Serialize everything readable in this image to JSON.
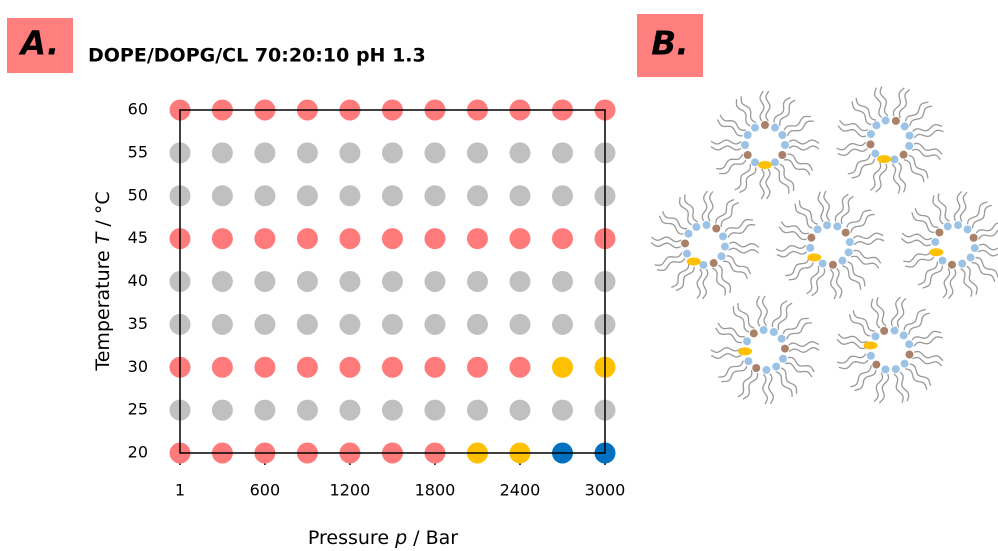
{
  "panel_labels": [
    "A.",
    "B."
  ],
  "chart_data": {
    "type": "scatter",
    "title": "DOPE/DOPG/CL 70:20:10 pH 1.3",
    "xlabel_parts": [
      "Pressure",
      "p",
      "/ Bar"
    ],
    "ylabel_parts": [
      "Temperature",
      "T",
      "/ °C"
    ],
    "xlim": [
      1,
      3000
    ],
    "ylim": [
      20,
      60
    ],
    "xticks": [
      1,
      600,
      1200,
      1800,
      2400,
      3000
    ],
    "yticks": [
      20,
      25,
      30,
      35,
      40,
      45,
      50,
      55,
      60
    ],
    "series": [
      {
        "color": "#ff7b7b",
        "x": [
          1,
          300,
          600,
          900,
          1200,
          1500,
          1800,
          2100,
          2400,
          2700,
          3000,
          1,
          300,
          600,
          900,
          1200,
          1500,
          1800,
          2100,
          2400,
          2700,
          3000,
          1,
          300,
          600,
          900,
          1200,
          1500,
          1800,
          2100,
          2400,
          1,
          300,
          600,
          900,
          1200,
          1500,
          1800
        ],
        "values": [
          60,
          60,
          60,
          60,
          60,
          60,
          60,
          60,
          60,
          60,
          60,
          45,
          45,
          45,
          45,
          45,
          45,
          45,
          45,
          45,
          45,
          45,
          30,
          30,
          30,
          30,
          30,
          30,
          30,
          30,
          30,
          20,
          20,
          20,
          20,
          20,
          20,
          20
        ]
      },
      {
        "color": "#c0c0c0",
        "x": [
          1,
          300,
          600,
          900,
          1200,
          1500,
          1800,
          2100,
          2400,
          2700,
          3000,
          1,
          300,
          600,
          900,
          1200,
          1500,
          1800,
          2100,
          2400,
          2700,
          3000,
          1,
          300,
          600,
          900,
          1200,
          1500,
          1800,
          2100,
          2400,
          2700,
          3000,
          1,
          300,
          600,
          900,
          1200,
          1500,
          1800,
          2100,
          2400,
          2700,
          3000,
          1,
          300,
          600,
          900,
          1200,
          1500,
          1800,
          2100,
          2400,
          2700,
          3000
        ],
        "values": [
          55,
          55,
          55,
          55,
          55,
          55,
          55,
          55,
          55,
          55,
          55,
          50,
          50,
          50,
          50,
          50,
          50,
          50,
          50,
          50,
          50,
          50,
          40,
          40,
          40,
          40,
          40,
          40,
          40,
          40,
          40,
          40,
          40,
          35,
          35,
          35,
          35,
          35,
          35,
          35,
          35,
          35,
          35,
          35,
          25,
          25,
          25,
          25,
          25,
          25,
          25,
          25,
          25,
          25,
          25
        ]
      },
      {
        "color": "#ffc000",
        "x": [
          2700,
          3000,
          2100,
          2400
        ],
        "values": [
          30,
          30,
          20,
          20
        ]
      },
      {
        "color": "#0070c0",
        "x": [
          2700,
          3000
        ],
        "values": [
          20,
          20
        ]
      }
    ]
  }
}
